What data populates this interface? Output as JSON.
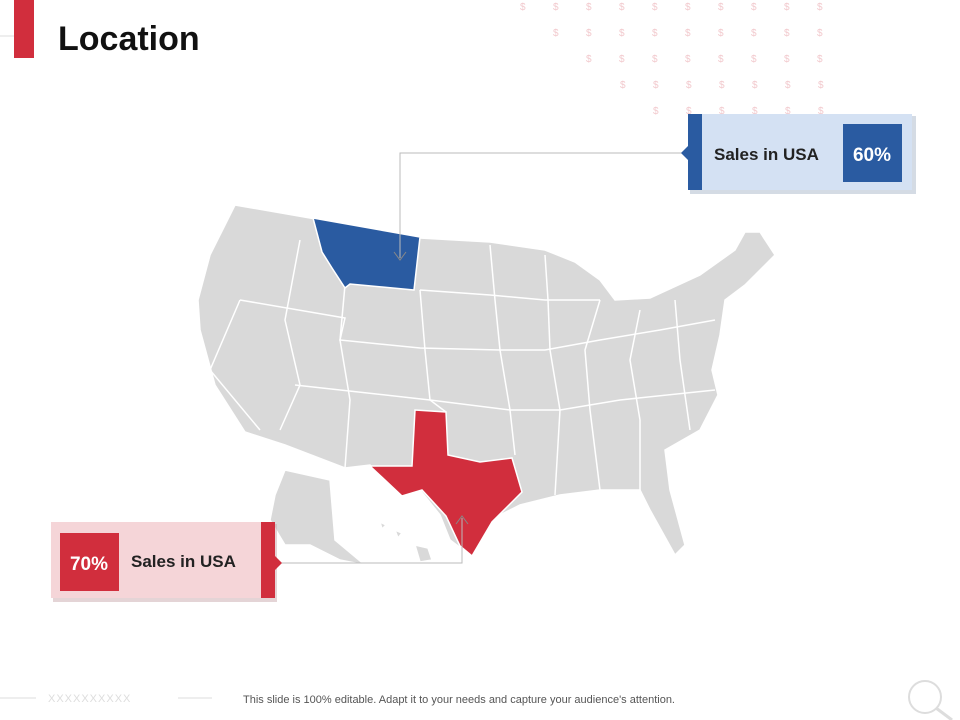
{
  "header": {
    "title": "Location"
  },
  "background": {
    "symbol": "$"
  },
  "callouts": [
    {
      "label": "Sales in USA",
      "value": "60%"
    },
    {
      "label": "Sales in USA",
      "value": "70%"
    }
  ],
  "footer": {
    "left_mark": "XXXXXXXXXX",
    "text": "This slide is 100% editable. Adapt it to your needs and capture your audience's attention."
  }
}
